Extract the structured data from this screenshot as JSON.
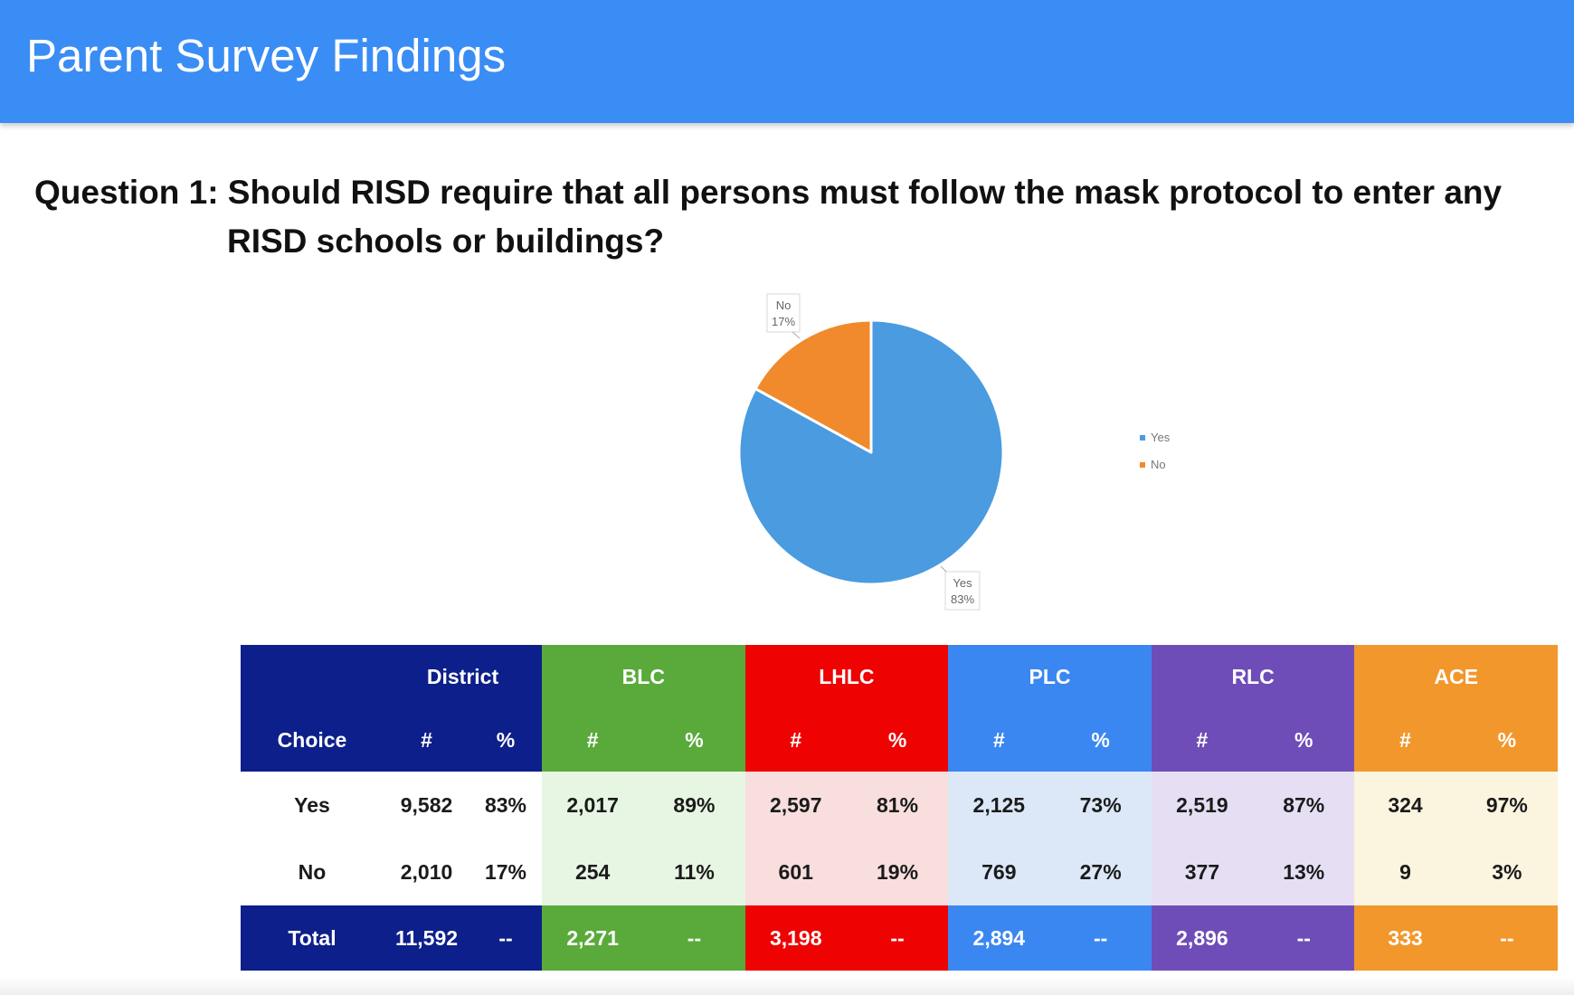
{
  "header": {
    "title": "Parent Survey Findings"
  },
  "question": {
    "lead": "Question 1:",
    "line1": " Should RISD require that all persons must follow the mask protocol to enter any",
    "line2": "RISD schools or buildings?"
  },
  "chart_data": {
    "type": "pie",
    "title": "",
    "slices": [
      {
        "name": "Yes",
        "value": 83,
        "label": "83%",
        "color": "#4a9be0"
      },
      {
        "name": "No",
        "value": 17,
        "label": "17%",
        "color": "#f08a2c"
      }
    ],
    "legend": {
      "placement": "right",
      "entries": [
        "Yes",
        "No"
      ]
    },
    "data_labels": "outside"
  },
  "table": {
    "choice_label": "Choice",
    "count_label": "#",
    "pct_label": "%",
    "groups": [
      {
        "name": "District",
        "key": "district",
        "header_color": "#0d1f8a",
        "tint_color": "#ffffff",
        "yes_n": "9,582",
        "yes_pct": "83%",
        "no_n": "2,010",
        "no_pct": "17%",
        "total_n": "11,592",
        "total_pct": "--"
      },
      {
        "name": "BLC",
        "key": "blc",
        "header_color": "#5aaa3b",
        "tint_color": "#e7f6e3",
        "yes_n": "2,017",
        "yes_pct": "89%",
        "no_n": "254",
        "no_pct": "11%",
        "total_n": "2,271",
        "total_pct": "--"
      },
      {
        "name": "LHLC",
        "key": "lhlc",
        "header_color": "#ee0202",
        "tint_color": "#f9dede",
        "yes_n": "2,597",
        "yes_pct": "81%",
        "no_n": "601",
        "no_pct": "19%",
        "total_n": "3,198",
        "total_pct": "--"
      },
      {
        "name": "PLC",
        "key": "plc",
        "header_color": "#3b87f2",
        "tint_color": "#dce8f8",
        "yes_n": "2,125",
        "yes_pct": "73%",
        "no_n": "769",
        "no_pct": "27%",
        "total_n": "2,894",
        "total_pct": "--"
      },
      {
        "name": "RLC",
        "key": "rlc",
        "header_color": "#6e4db8",
        "tint_color": "#e6dff4",
        "yes_n": "2,519",
        "yes_pct": "87%",
        "no_n": "377",
        "no_pct": "13%",
        "total_n": "2,896",
        "total_pct": "--"
      },
      {
        "name": "ACE",
        "key": "ace",
        "header_color": "#f2972c",
        "tint_color": "#fbf4df",
        "yes_n": "324",
        "yes_pct": "97%",
        "no_n": "9",
        "no_pct": "3%",
        "total_n": "333",
        "total_pct": "--"
      }
    ],
    "rows": {
      "yes": "Yes",
      "no": "No",
      "total": "Total"
    }
  }
}
